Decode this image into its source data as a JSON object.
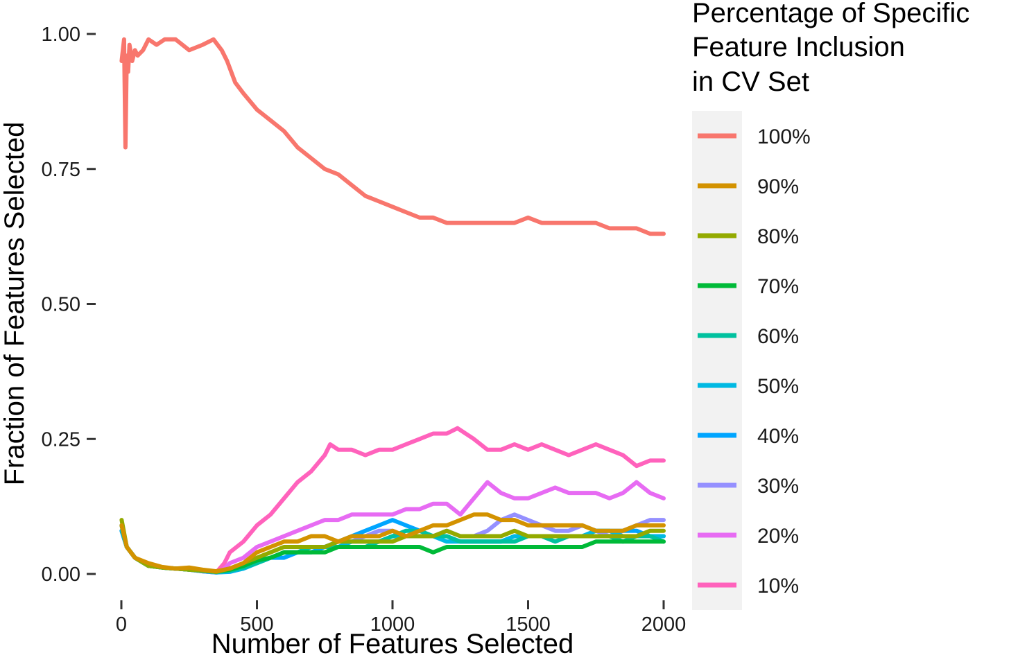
{
  "chart_data": {
    "type": "line",
    "title": "",
    "xlabel": "Number of Features Selected",
    "ylabel": "Fraction of Features Selected",
    "xlim": [
      0,
      2000
    ],
    "ylim": [
      0,
      1
    ],
    "xticks": [
      0,
      500,
      1000,
      1500,
      2000
    ],
    "xtick_labels": [
      "0",
      "500",
      "1000",
      "1500",
      "2000"
    ],
    "yticks": [
      0,
      0.25,
      0.5,
      0.75,
      1.0
    ],
    "ytick_labels": [
      "0.00",
      "0.25",
      "0.50",
      "0.75",
      "1.00"
    ],
    "grid": false,
    "legend": {
      "title_lines": [
        "Percentage of Specific",
        "Feature Inclusion",
        "in CV Set"
      ],
      "placement": "right"
    },
    "series": [
      {
        "name": "100%",
        "color": "#F8766D",
        "x": [
          1,
          10,
          15,
          20,
          25,
          30,
          40,
          50,
          60,
          80,
          100,
          130,
          160,
          200,
          250,
          300,
          340,
          370,
          390,
          420,
          450,
          500,
          550,
          600,
          650,
          700,
          750,
          800,
          850,
          900,
          950,
          1000,
          1050,
          1100,
          1150,
          1200,
          1250,
          1300,
          1350,
          1400,
          1450,
          1500,
          1550,
          1600,
          1650,
          1700,
          1750,
          1800,
          1850,
          1900,
          1950,
          2000
        ],
        "y": [
          0.95,
          0.99,
          0.79,
          0.96,
          0.93,
          0.98,
          0.95,
          0.97,
          0.96,
          0.97,
          0.99,
          0.98,
          0.99,
          0.99,
          0.97,
          0.98,
          0.99,
          0.97,
          0.95,
          0.91,
          0.89,
          0.86,
          0.84,
          0.82,
          0.79,
          0.77,
          0.75,
          0.74,
          0.72,
          0.7,
          0.69,
          0.68,
          0.67,
          0.66,
          0.66,
          0.65,
          0.65,
          0.65,
          0.65,
          0.65,
          0.65,
          0.66,
          0.65,
          0.65,
          0.65,
          0.65,
          0.65,
          0.64,
          0.64,
          0.64,
          0.63,
          0.63
        ]
      },
      {
        "name": "90%",
        "color": "#D39200",
        "x": [
          1,
          20,
          50,
          100,
          150,
          200,
          250,
          300,
          350,
          400,
          450,
          500,
          550,
          600,
          650,
          700,
          750,
          800,
          850,
          900,
          950,
          1000,
          1050,
          1100,
          1150,
          1200,
          1250,
          1300,
          1350,
          1400,
          1450,
          1500,
          1550,
          1600,
          1650,
          1700,
          1750,
          1800,
          1850,
          1900,
          1950,
          2000
        ],
        "y": [
          0.09,
          0.05,
          0.03,
          0.02,
          0.013,
          0.01,
          0.012,
          0.008,
          0.005,
          0.01,
          0.02,
          0.04,
          0.05,
          0.06,
          0.06,
          0.07,
          0.07,
          0.06,
          0.07,
          0.07,
          0.07,
          0.08,
          0.07,
          0.08,
          0.09,
          0.09,
          0.1,
          0.11,
          0.11,
          0.1,
          0.1,
          0.09,
          0.09,
          0.09,
          0.09,
          0.09,
          0.08,
          0.08,
          0.08,
          0.09,
          0.09,
          0.09
        ]
      },
      {
        "name": "80%",
        "color": "#93AA00",
        "x": [
          1,
          20,
          50,
          100,
          150,
          200,
          250,
          300,
          350,
          400,
          450,
          500,
          550,
          600,
          650,
          700,
          750,
          800,
          850,
          900,
          950,
          1000,
          1050,
          1100,
          1150,
          1200,
          1250,
          1300,
          1350,
          1400,
          1450,
          1500,
          1550,
          1600,
          1650,
          1700,
          1750,
          1800,
          1850,
          1900,
          1950,
          2000
        ],
        "y": [
          0.1,
          0.05,
          0.03,
          0.015,
          0.012,
          0.01,
          0.008,
          0.006,
          0.004,
          0.01,
          0.02,
          0.03,
          0.04,
          0.05,
          0.05,
          0.05,
          0.05,
          0.06,
          0.06,
          0.06,
          0.06,
          0.06,
          0.07,
          0.07,
          0.07,
          0.08,
          0.07,
          0.07,
          0.07,
          0.07,
          0.08,
          0.07,
          0.07,
          0.07,
          0.07,
          0.07,
          0.07,
          0.07,
          0.07,
          0.07,
          0.08,
          0.08
        ]
      },
      {
        "name": "70%",
        "color": "#00BA38",
        "x": [
          1,
          20,
          50,
          100,
          150,
          200,
          250,
          300,
          350,
          400,
          450,
          500,
          550,
          600,
          650,
          700,
          750,
          800,
          850,
          900,
          950,
          1000,
          1050,
          1100,
          1150,
          1200,
          1250,
          1300,
          1350,
          1400,
          1450,
          1500,
          1550,
          1600,
          1650,
          1700,
          1750,
          1800,
          1850,
          1900,
          1950,
          2000
        ],
        "y": [
          0.09,
          0.05,
          0.03,
          0.015,
          0.012,
          0.01,
          0.008,
          0.006,
          0.004,
          0.008,
          0.015,
          0.025,
          0.03,
          0.04,
          0.04,
          0.04,
          0.04,
          0.05,
          0.05,
          0.05,
          0.05,
          0.05,
          0.05,
          0.05,
          0.04,
          0.05,
          0.05,
          0.05,
          0.05,
          0.05,
          0.05,
          0.05,
          0.05,
          0.05,
          0.05,
          0.05,
          0.06,
          0.06,
          0.06,
          0.06,
          0.06,
          0.06
        ]
      },
      {
        "name": "60%",
        "color": "#00C19F",
        "x": [
          1,
          20,
          50,
          100,
          150,
          200,
          250,
          300,
          350,
          400,
          450,
          500,
          550,
          600,
          650,
          700,
          750,
          800,
          850,
          900,
          950,
          1000,
          1050,
          1100,
          1150,
          1200,
          1250,
          1300,
          1350,
          1400,
          1450,
          1500,
          1550,
          1600,
          1650,
          1700,
          1750,
          1800,
          1850,
          1900,
          1950,
          2000
        ],
        "y": [
          0.09,
          0.05,
          0.03,
          0.015,
          0.012,
          0.01,
          0.008,
          0.006,
          0.004,
          0.006,
          0.012,
          0.02,
          0.03,
          0.04,
          0.04,
          0.05,
          0.05,
          0.05,
          0.05,
          0.05,
          0.06,
          0.07,
          0.08,
          0.08,
          0.07,
          0.07,
          0.06,
          0.06,
          0.06,
          0.06,
          0.06,
          0.07,
          0.07,
          0.06,
          0.07,
          0.07,
          0.07,
          0.07,
          0.06,
          0.07,
          0.07,
          0.06
        ]
      },
      {
        "name": "50%",
        "color": "#00B9E3",
        "x": [
          1,
          20,
          50,
          100,
          150,
          200,
          250,
          300,
          350,
          400,
          450,
          500,
          550,
          600,
          650,
          700,
          750,
          800,
          850,
          900,
          950,
          1000,
          1050,
          1100,
          1150,
          1200,
          1250,
          1300,
          1350,
          1400,
          1450,
          1500,
          1550,
          1600,
          1650,
          1700,
          1750,
          1800,
          1850,
          1900,
          1950,
          2000
        ],
        "y": [
          0.08,
          0.05,
          0.03,
          0.015,
          0.012,
          0.01,
          0.008,
          0.006,
          0.003,
          0.005,
          0.01,
          0.02,
          0.03,
          0.04,
          0.04,
          0.05,
          0.05,
          0.05,
          0.06,
          0.06,
          0.06,
          0.07,
          0.07,
          0.07,
          0.07,
          0.06,
          0.06,
          0.06,
          0.06,
          0.06,
          0.07,
          0.07,
          0.07,
          0.07,
          0.07,
          0.07,
          0.08,
          0.08,
          0.07,
          0.07,
          0.07,
          0.07
        ]
      },
      {
        "name": "40%",
        "color": "#00A5FF",
        "x": [
          1,
          20,
          50,
          100,
          150,
          200,
          250,
          300,
          350,
          400,
          450,
          500,
          550,
          600,
          650,
          700,
          750,
          800,
          850,
          900,
          950,
          1000,
          1050,
          1100,
          1150,
          1200,
          1250,
          1300,
          1350,
          1400,
          1450,
          1500,
          1550,
          1600,
          1650,
          1700,
          1750,
          1800,
          1850,
          1900,
          1950,
          2000
        ],
        "y": [
          0.08,
          0.05,
          0.03,
          0.015,
          0.012,
          0.01,
          0.008,
          0.005,
          0.003,
          0.004,
          0.01,
          0.02,
          0.03,
          0.03,
          0.04,
          0.04,
          0.05,
          0.06,
          0.07,
          0.08,
          0.09,
          0.1,
          0.09,
          0.08,
          0.07,
          0.07,
          0.06,
          0.06,
          0.06,
          0.06,
          0.07,
          0.07,
          0.07,
          0.07,
          0.07,
          0.07,
          0.08,
          0.08,
          0.08,
          0.08,
          0.07,
          0.07
        ]
      },
      {
        "name": "30%",
        "color": "#9590FF",
        "x": [
          1,
          20,
          50,
          100,
          150,
          200,
          250,
          300,
          350,
          400,
          450,
          500,
          550,
          600,
          650,
          700,
          750,
          800,
          850,
          900,
          950,
          1000,
          1050,
          1100,
          1150,
          1200,
          1250,
          1300,
          1350,
          1400,
          1450,
          1500,
          1550,
          1600,
          1650,
          1700,
          1750,
          1800,
          1850,
          1900,
          1950,
          2000
        ],
        "y": [
          0.08,
          0.05,
          0.03,
          0.015,
          0.012,
          0.01,
          0.008,
          0.005,
          0.003,
          0.005,
          0.01,
          0.02,
          0.03,
          0.04,
          0.04,
          0.05,
          0.05,
          0.06,
          0.06,
          0.07,
          0.08,
          0.08,
          0.07,
          0.07,
          0.07,
          0.08,
          0.07,
          0.07,
          0.08,
          0.1,
          0.11,
          0.1,
          0.09,
          0.08,
          0.08,
          0.09,
          0.08,
          0.07,
          0.08,
          0.09,
          0.1,
          0.1
        ]
      },
      {
        "name": "20%",
        "color": "#E76BF3",
        "x": [
          1,
          20,
          50,
          100,
          150,
          200,
          250,
          300,
          350,
          380,
          400,
          450,
          500,
          550,
          600,
          650,
          700,
          750,
          800,
          850,
          900,
          950,
          1000,
          1050,
          1100,
          1150,
          1200,
          1250,
          1300,
          1350,
          1400,
          1450,
          1500,
          1550,
          1600,
          1650,
          1700,
          1750,
          1800,
          1850,
          1900,
          1950,
          2000
        ],
        "y": [
          0.08,
          0.05,
          0.03,
          0.015,
          0.012,
          0.01,
          0.008,
          0.005,
          0.003,
          0.01,
          0.02,
          0.03,
          0.05,
          0.06,
          0.07,
          0.08,
          0.09,
          0.1,
          0.1,
          0.11,
          0.11,
          0.11,
          0.11,
          0.12,
          0.12,
          0.13,
          0.13,
          0.11,
          0.14,
          0.17,
          0.15,
          0.14,
          0.14,
          0.15,
          0.16,
          0.15,
          0.15,
          0.15,
          0.14,
          0.15,
          0.17,
          0.15,
          0.14
        ]
      },
      {
        "name": "10%",
        "color": "#FF62BC",
        "x": [
          1,
          20,
          50,
          100,
          150,
          200,
          250,
          300,
          350,
          380,
          400,
          450,
          500,
          550,
          600,
          650,
          700,
          750,
          770,
          800,
          850,
          900,
          950,
          1000,
          1050,
          1100,
          1150,
          1200,
          1240,
          1300,
          1350,
          1400,
          1450,
          1500,
          1550,
          1600,
          1650,
          1700,
          1750,
          1800,
          1850,
          1900,
          1950,
          2000
        ],
        "y": [
          0.09,
          0.05,
          0.03,
          0.015,
          0.012,
          0.01,
          0.008,
          0.005,
          0.003,
          0.02,
          0.04,
          0.06,
          0.09,
          0.11,
          0.14,
          0.17,
          0.19,
          0.22,
          0.24,
          0.23,
          0.23,
          0.22,
          0.23,
          0.23,
          0.24,
          0.25,
          0.26,
          0.26,
          0.27,
          0.25,
          0.23,
          0.23,
          0.24,
          0.23,
          0.24,
          0.23,
          0.22,
          0.23,
          0.24,
          0.23,
          0.22,
          0.2,
          0.21,
          0.21
        ]
      }
    ]
  }
}
